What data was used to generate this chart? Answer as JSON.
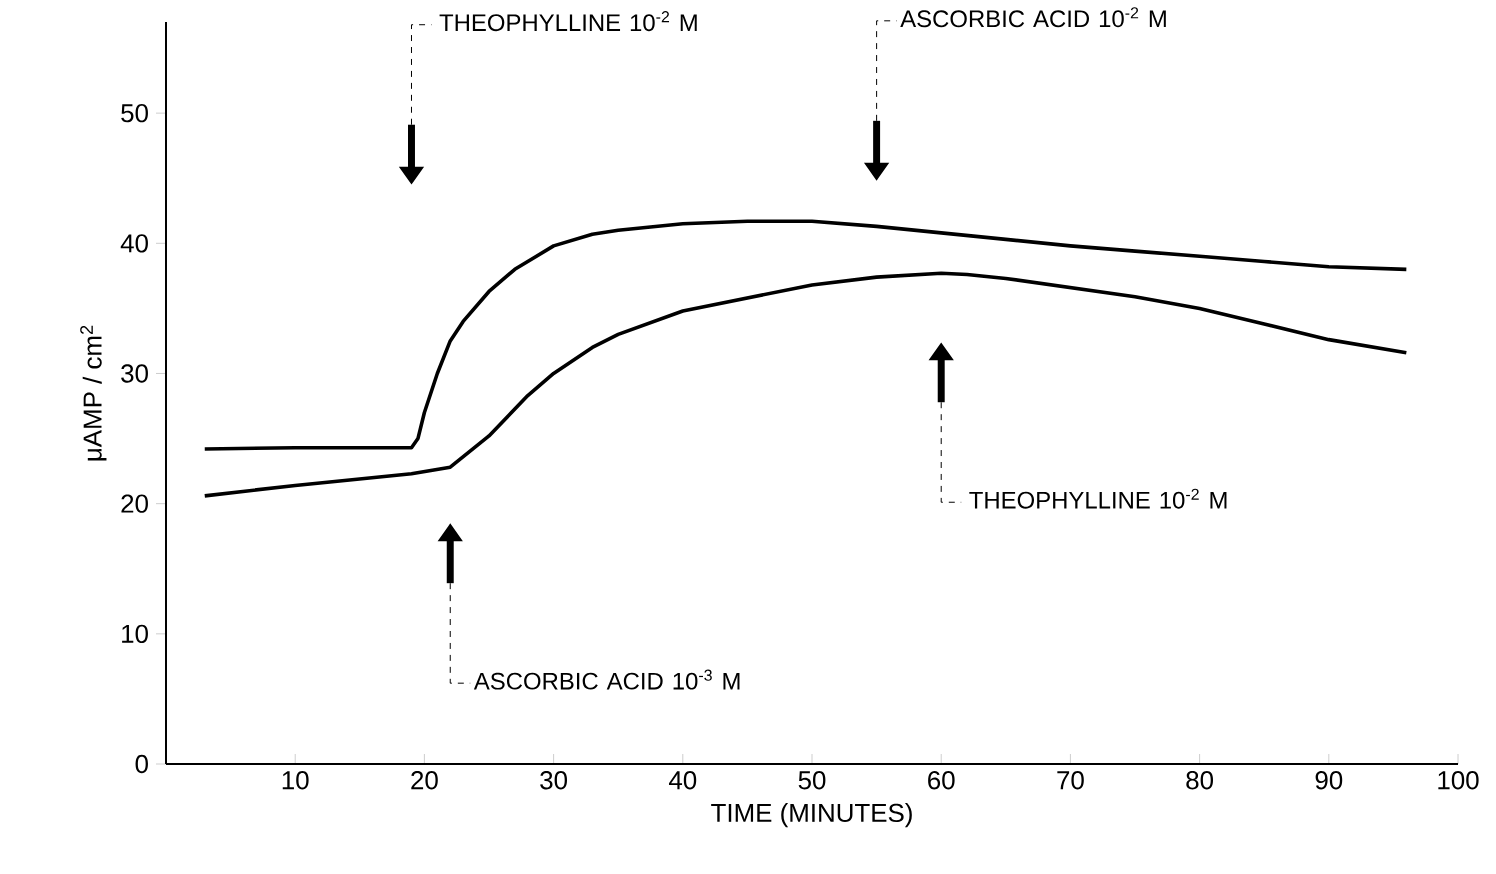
{
  "chart_data": {
    "type": "line",
    "xlabel": "TIME (MINUTES)",
    "ylabel": "μAMP / cm$^{2}$",
    "xlim": [
      0,
      100
    ],
    "ylim": [
      0,
      57
    ],
    "xticks": [
      10,
      20,
      30,
      40,
      50,
      60,
      70,
      80,
      90,
      100
    ],
    "yticks": [
      0,
      10,
      20,
      30,
      40,
      50
    ],
    "marker": "none",
    "line_style": "solid",
    "series": [
      {
        "color": "#000000",
        "x": [
          3,
          10,
          19,
          19.5,
          20,
          21,
          22,
          23,
          25,
          27,
          30,
          33,
          35,
          40,
          45,
          50,
          55,
          60,
          65,
          70,
          75,
          80,
          85,
          90,
          96
        ],
        "values": [
          24.2,
          24.3,
          24.3,
          25,
          27,
          30,
          32.5,
          34,
          36.3,
          38,
          39.8,
          40.7,
          41,
          41.5,
          41.7,
          41.7,
          41.3,
          40.8,
          40.3,
          39.8,
          39.4,
          39,
          38.6,
          38.2,
          38
        ]
      },
      {
        "color": "#000000",
        "x": [
          3,
          10,
          19,
          22,
          25,
          28,
          30,
          33,
          35,
          40,
          45,
          50,
          55,
          60,
          62,
          65,
          70,
          75,
          80,
          85,
          90,
          96
        ],
        "values": [
          20.6,
          21.4,
          22.3,
          22.8,
          25.2,
          28.3,
          30,
          32,
          33,
          34.8,
          35.8,
          36.8,
          37.4,
          37.7,
          37.6,
          37.3,
          36.6,
          35.9,
          35,
          33.8,
          32.6,
          31.6
        ]
      }
    ],
    "annotations": [
      "THEOPHYLLINE 10$^{-2}$ M",
      "ASCORBIC ACID 10$^{-3}$ M",
      "ASCORBIC ACID 10$^{-2}$ M",
      "THEOPHYLLINE 10$^{-2}$ M"
    ]
  }
}
